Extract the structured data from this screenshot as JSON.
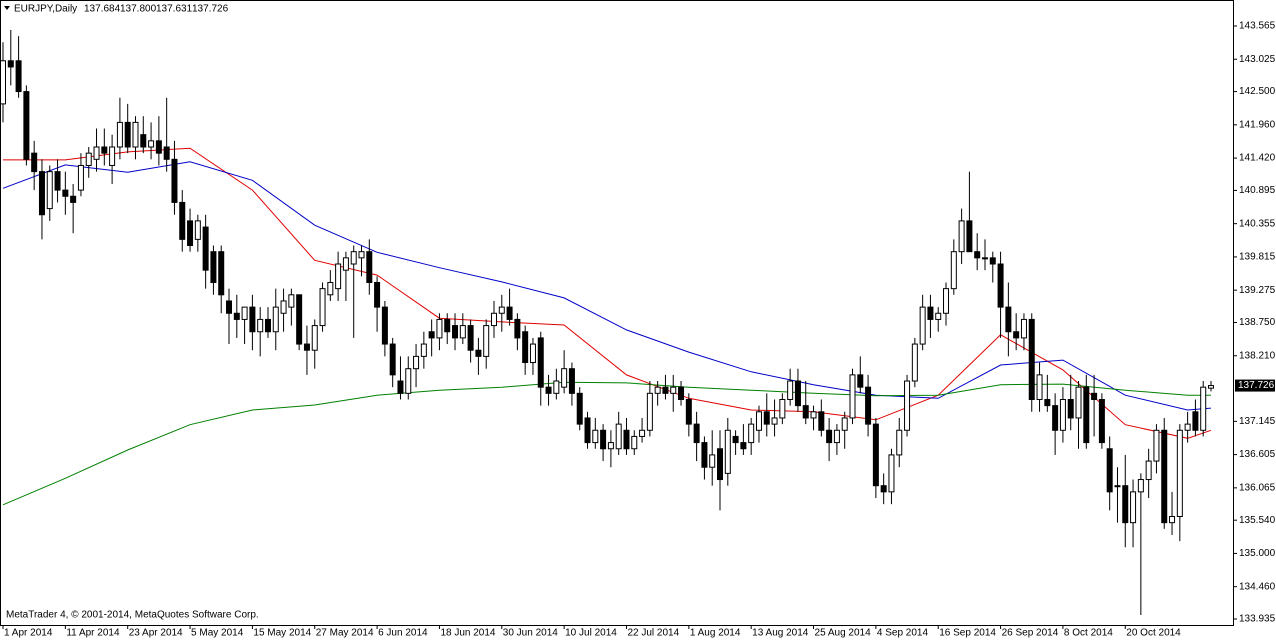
{
  "chart_data": {
    "type": "candlestick",
    "title": "EURJPY,Daily",
    "quote": [
      "137.684",
      "137.800",
      "137.631",
      "137.726"
    ],
    "footer": "MetaTrader 4, © 2001-2014, MetaQuotes Software Corp.",
    "ylim": [
      133.838,
      143.987
    ],
    "yticks": [
      143.565,
      143.025,
      {
        "value": 142.5,
        "label": "142.500"
      },
      {
        "value": 141.96,
        "label": "141.960"
      },
      {
        "value": 141.42,
        "label": "141.420"
      },
      140.895,
      140.355,
      139.815,
      139.275,
      {
        "value": 138.75,
        "label": "138.750"
      },
      {
        "value": 138.21,
        "label": "138.210"
      },
      137.145,
      136.605,
      136.065,
      {
        "value": 135.54,
        "label": "135.540"
      },
      {
        "value": 135,
        "label": "135.000"
      },
      {
        "value": 134.46,
        "label": "134.460"
      },
      133.935
    ],
    "categories": [
      "1 Apr 2014",
      null,
      null,
      null,
      null,
      null,
      null,
      null,
      "11 Apr 2014",
      null,
      null,
      null,
      null,
      null,
      null,
      null,
      "23 Apr 2014",
      null,
      null,
      null,
      null,
      null,
      null,
      null,
      "5 May 2014",
      null,
      null,
      null,
      null,
      null,
      null,
      null,
      "15 May 2014",
      null,
      null,
      null,
      null,
      null,
      null,
      null,
      "27 May 2014",
      null,
      null,
      null,
      null,
      null,
      null,
      null,
      "6 Jun 2014",
      null,
      null,
      null,
      null,
      null,
      null,
      null,
      "18 Jun 2014",
      null,
      null,
      null,
      null,
      null,
      null,
      null,
      "30 Jun 2014",
      null,
      null,
      null,
      null,
      null,
      null,
      null,
      "10 Jul 2014",
      null,
      null,
      null,
      null,
      null,
      null,
      null,
      "22 Jul 2014",
      null,
      null,
      null,
      null,
      null,
      null,
      null,
      "1 Aug 2014",
      null,
      null,
      null,
      null,
      null,
      null,
      null,
      "13 Aug 2014",
      null,
      null,
      null,
      null,
      null,
      null,
      null,
      "25 Aug 2014",
      null,
      null,
      null,
      null,
      null,
      null,
      null,
      "4 Sep 2014",
      null,
      null,
      null,
      null,
      null,
      null,
      null,
      "16 Sep 2014",
      null,
      null,
      null,
      null,
      null,
      null,
      null,
      "26 Sep 2014",
      null,
      null,
      null,
      null,
      null,
      null,
      null,
      "8 Oct 2014",
      null,
      null,
      null,
      null,
      null,
      null,
      null,
      "20 Oct 2014",
      null,
      null,
      null,
      null,
      null,
      null,
      null,
      null,
      null,
      null,
      null
    ],
    "ohlc": [
      [
        142.3,
        143.3,
        142.0,
        143.0
      ],
      [
        143.0,
        143.5,
        142.6,
        142.9
      ],
      [
        143.0,
        143.4,
        142.4,
        142.5
      ],
      [
        142.5,
        142.6,
        141.3,
        141.4
      ],
      [
        141.5,
        141.7,
        140.9,
        141.2
      ],
      [
        141.2,
        141.4,
        140.1,
        140.5
      ],
      [
        140.6,
        141.3,
        140.4,
        141.2
      ],
      [
        141.2,
        141.4,
        140.7,
        140.9
      ],
      [
        140.9,
        141.2,
        140.5,
        140.8
      ],
      [
        140.8,
        141.0,
        140.2,
        140.7
      ],
      [
        140.9,
        141.5,
        140.8,
        141.3
      ],
      [
        141.3,
        141.6,
        141.1,
        141.5
      ],
      [
        141.4,
        141.9,
        141.2,
        141.6
      ],
      [
        141.6,
        141.9,
        141.3,
        141.5
      ],
      [
        141.3,
        141.8,
        141.0,
        141.6
      ],
      [
        141.6,
        142.4,
        141.4,
        142.0
      ],
      [
        142.0,
        142.3,
        141.5,
        141.6
      ],
      [
        141.6,
        142.1,
        141.4,
        142.0
      ],
      [
        141.8,
        142.1,
        141.5,
        141.6
      ],
      [
        141.6,
        142.0,
        141.4,
        141.7
      ],
      [
        141.7,
        142.1,
        141.3,
        141.5
      ],
      [
        141.6,
        142.4,
        141.2,
        141.4
      ],
      [
        141.4,
        141.7,
        140.5,
        140.7
      ],
      [
        140.7,
        140.9,
        139.9,
        140.1
      ],
      [
        140.4,
        140.6,
        139.9,
        140.0
      ],
      [
        140.1,
        140.5,
        139.9,
        140.4
      ],
      [
        140.3,
        140.5,
        139.3,
        139.6
      ],
      [
        139.9,
        140.0,
        139.2,
        139.4
      ],
      [
        139.9,
        140.0,
        138.9,
        139.2
      ],
      [
        139.1,
        139.3,
        138.4,
        138.9
      ],
      [
        138.9,
        139.2,
        138.5,
        138.8
      ],
      [
        138.8,
        139.0,
        138.4,
        139.0
      ],
      [
        139.0,
        139.2,
        138.3,
        138.6
      ],
      [
        138.6,
        139.0,
        138.2,
        138.8
      ],
      [
        138.8,
        139.0,
        138.5,
        138.6
      ],
      [
        138.6,
        139.3,
        138.3,
        139.0
      ],
      [
        138.9,
        139.3,
        138.6,
        139.1
      ],
      [
        139.0,
        139.3,
        138.7,
        139.2
      ],
      [
        139.2,
        139.2,
        138.3,
        138.4
      ],
      [
        138.4,
        138.7,
        137.9,
        138.3
      ],
      [
        138.3,
        138.8,
        138.0,
        138.7
      ],
      [
        138.7,
        139.4,
        138.6,
        139.3
      ],
      [
        139.2,
        139.6,
        139.1,
        139.4
      ],
      [
        139.3,
        139.9,
        139.1,
        139.7
      ],
      [
        139.6,
        139.9,
        139.1,
        139.8
      ],
      [
        139.7,
        140.0,
        138.5,
        139.9
      ],
      [
        139.8,
        140.0,
        139.5,
        139.9
      ],
      [
        139.9,
        140.1,
        139.2,
        139.4
      ],
      [
        139.4,
        139.5,
        138.6,
        139.0
      ],
      [
        139.0,
        139.1,
        138.2,
        138.4
      ],
      [
        138.4,
        138.5,
        137.7,
        137.9
      ],
      [
        137.8,
        138.2,
        137.5,
        137.6
      ],
      [
        137.6,
        138.2,
        137.5,
        138.0
      ],
      [
        138.0,
        138.4,
        137.7,
        138.2
      ],
      [
        138.2,
        138.6,
        138.0,
        138.4
      ],
      [
        138.6,
        138.8,
        138.2,
        138.5
      ],
      [
        138.5,
        138.9,
        138.3,
        138.8
      ],
      [
        138.8,
        138.9,
        138.4,
        138.6
      ],
      [
        138.7,
        138.9,
        138.3,
        138.5
      ],
      [
        138.5,
        138.9,
        138.4,
        138.7
      ],
      [
        138.7,
        138.8,
        138.1,
        138.3
      ],
      [
        138.3,
        138.5,
        137.9,
        138.2
      ],
      [
        138.2,
        138.8,
        138.0,
        138.7
      ],
      [
        138.7,
        139.1,
        138.5,
        138.9
      ],
      [
        138.9,
        139.2,
        138.6,
        139.0
      ],
      [
        139.0,
        139.3,
        138.7,
        138.8
      ],
      [
        138.8,
        138.9,
        138.3,
        138.5
      ],
      [
        138.6,
        138.7,
        137.9,
        138.1
      ],
      [
        138.1,
        138.5,
        137.9,
        138.4
      ],
      [
        138.5,
        138.6,
        137.4,
        137.7
      ],
      [
        137.7,
        137.9,
        137.4,
        137.6
      ],
      [
        137.6,
        138.0,
        137.5,
        137.8
      ],
      [
        137.7,
        138.3,
        137.6,
        138.0
      ],
      [
        138.0,
        138.1,
        137.4,
        137.6
      ],
      [
        137.6,
        137.7,
        137.0,
        137.1
      ],
      [
        137.2,
        137.3,
        136.7,
        136.8
      ],
      [
        136.8,
        137.2,
        136.7,
        137.0
      ],
      [
        137.0,
        137.1,
        136.5,
        136.7
      ],
      [
        136.7,
        137.0,
        136.4,
        136.8
      ],
      [
        136.7,
        137.3,
        136.6,
        137.1
      ],
      [
        137.0,
        137.2,
        136.6,
        136.7
      ],
      [
        136.7,
        137.0,
        136.6,
        136.9
      ],
      [
        136.9,
        137.2,
        136.8,
        137.0
      ],
      [
        137.0,
        137.8,
        136.9,
        137.6
      ],
      [
        137.6,
        137.8,
        137.4,
        137.7
      ],
      [
        137.7,
        137.9,
        137.5,
        137.6
      ],
      [
        137.6,
        137.9,
        137.3,
        137.7
      ],
      [
        137.7,
        137.8,
        137.4,
        137.5
      ],
      [
        137.5,
        137.6,
        136.9,
        137.1
      ],
      [
        137.1,
        137.3,
        136.5,
        136.8
      ],
      [
        136.8,
        136.9,
        136.2,
        136.4
      ],
      [
        136.4,
        137.0,
        136.1,
        136.6
      ],
      [
        136.7,
        137.0,
        135.7,
        136.2
      ],
      [
        136.3,
        137.2,
        136.1,
        137.0
      ],
      [
        136.9,
        137.0,
        136.6,
        136.8
      ],
      [
        136.8,
        137.1,
        136.6,
        136.7
      ],
      [
        136.8,
        137.2,
        136.6,
        137.1
      ],
      [
        137.0,
        137.4,
        136.8,
        137.3
      ],
      [
        137.3,
        137.6,
        136.9,
        137.1
      ],
      [
        137.1,
        137.5,
        136.9,
        137.2
      ],
      [
        137.2,
        137.6,
        137.1,
        137.5
      ],
      [
        137.5,
        138.0,
        137.4,
        137.8
      ],
      [
        137.8,
        138.0,
        137.3,
        137.4
      ],
      [
        137.4,
        137.8,
        137.1,
        137.2
      ],
      [
        137.2,
        137.4,
        137.0,
        137.3
      ],
      [
        137.3,
        137.5,
        136.9,
        137.0
      ],
      [
        137.0,
        137.2,
        136.5,
        136.8
      ],
      [
        136.8,
        137.1,
        136.6,
        137.0
      ],
      [
        137.0,
        137.3,
        136.7,
        137.2
      ],
      [
        137.2,
        138.0,
        137.1,
        137.9
      ],
      [
        137.9,
        138.2,
        137.6,
        137.7
      ],
      [
        137.7,
        137.9,
        136.9,
        137.1
      ],
      [
        137.1,
        137.2,
        135.9,
        136.1
      ],
      [
        136.1,
        136.3,
        135.8,
        136.0
      ],
      [
        136.0,
        136.7,
        135.8,
        136.6
      ],
      [
        136.6,
        137.2,
        136.4,
        137.0
      ],
      [
        137.0,
        137.9,
        136.9,
        137.8
      ],
      [
        137.8,
        138.5,
        137.7,
        138.4
      ],
      [
        138.4,
        139.2,
        138.3,
        139.0
      ],
      [
        139.0,
        139.2,
        138.5,
        138.8
      ],
      [
        138.8,
        139.0,
        138.6,
        138.9
      ],
      [
        138.9,
        139.4,
        138.7,
        139.3
      ],
      [
        139.3,
        140.1,
        139.2,
        139.9
      ],
      [
        139.9,
        140.6,
        139.7,
        140.4
      ],
      [
        140.4,
        141.2,
        139.9,
        139.9
      ],
      [
        139.9,
        140.2,
        139.6,
        139.8
      ],
      [
        139.8,
        140.1,
        139.6,
        139.8
      ],
      [
        139.8,
        139.9,
        139.4,
        139.7
      ],
      [
        139.7,
        139.9,
        138.5,
        139.0
      ],
      [
        139.0,
        139.4,
        138.2,
        138.6
      ],
      [
        138.6,
        138.9,
        138.3,
        138.5
      ],
      [
        138.5,
        138.9,
        138.3,
        138.8
      ],
      [
        138.8,
        138.9,
        137.3,
        137.5
      ],
      [
        137.5,
        138.1,
        137.3,
        137.9
      ],
      [
        137.5,
        137.9,
        137.3,
        137.4
      ],
      [
        137.4,
        137.6,
        136.6,
        137.0
      ],
      [
        137.0,
        137.7,
        136.8,
        137.5
      ],
      [
        137.5,
        137.9,
        137.0,
        137.2
      ],
      [
        137.2,
        137.8,
        136.7,
        137.7
      ],
      [
        137.7,
        137.9,
        136.7,
        136.8
      ],
      [
        137.6,
        137.9,
        136.9,
        137.5
      ],
      [
        137.5,
        137.6,
        136.7,
        136.8
      ],
      [
        136.7,
        136.9,
        135.7,
        136.0
      ],
      [
        136.1,
        136.4,
        135.5,
        136.1
      ],
      [
        136.1,
        136.6,
        135.1,
        135.5
      ],
      [
        135.5,
        136.2,
        135.1,
        136.0
      ],
      [
        136.0,
        136.3,
        134.0,
        136.2
      ],
      [
        136.2,
        136.7,
        135.9,
        136.5
      ],
      [
        136.5,
        137.1,
        136.3,
        137.0
      ],
      [
        137.0,
        137.2,
        135.4,
        135.5
      ],
      [
        135.5,
        136.0,
        135.3,
        135.6
      ],
      [
        135.6,
        137.1,
        135.2,
        137.0
      ],
      [
        137.0,
        137.3,
        136.8,
        137.1
      ],
      [
        137.3,
        137.5,
        136.9,
        137.0
      ],
      [
        137.0,
        137.8,
        136.9,
        137.7
      ],
      [
        137.684,
        137.8,
        137.631,
        137.726
      ]
    ],
    "series": [
      {
        "color": "#e00000",
        "x": [
          0,
          8,
          16,
          24,
          32,
          40,
          48,
          56,
          64,
          72,
          80,
          88,
          96,
          104,
          112,
          120,
          128,
          136,
          144,
          152,
          155
        ],
        "values": [
          141.39,
          141.39,
          141.52,
          141.58,
          140.9,
          139.76,
          139.52,
          138.82,
          138.76,
          138.71,
          137.9,
          137.52,
          137.33,
          137.3,
          137.17,
          137.57,
          138.55,
          137.98,
          137.09,
          136.87,
          137.0
        ]
      },
      {
        "color": "#0000c8",
        "x": [
          0,
          8,
          16,
          24,
          32,
          40,
          48,
          56,
          64,
          72,
          80,
          88,
          96,
          104,
          112,
          120,
          128,
          136,
          144,
          152,
          155
        ],
        "values": [
          140.93,
          141.31,
          141.19,
          141.36,
          141.06,
          140.33,
          139.89,
          139.64,
          139.41,
          139.15,
          138.63,
          138.27,
          137.95,
          137.74,
          137.57,
          137.52,
          138.06,
          138.14,
          137.57,
          137.33,
          137.36
        ]
      },
      {
        "color": "#008000",
        "x": [
          0,
          8,
          16,
          24,
          32,
          40,
          48,
          56,
          64,
          72,
          80,
          88,
          96,
          104,
          112,
          120,
          128,
          136,
          144,
          152,
          155
        ],
        "values": [
          135.79,
          136.22,
          136.68,
          137.09,
          137.33,
          137.41,
          137.57,
          137.65,
          137.7,
          137.78,
          137.77,
          137.7,
          137.65,
          137.6,
          137.56,
          137.57,
          137.74,
          137.75,
          137.65,
          137.57,
          137.57
        ]
      }
    ]
  }
}
